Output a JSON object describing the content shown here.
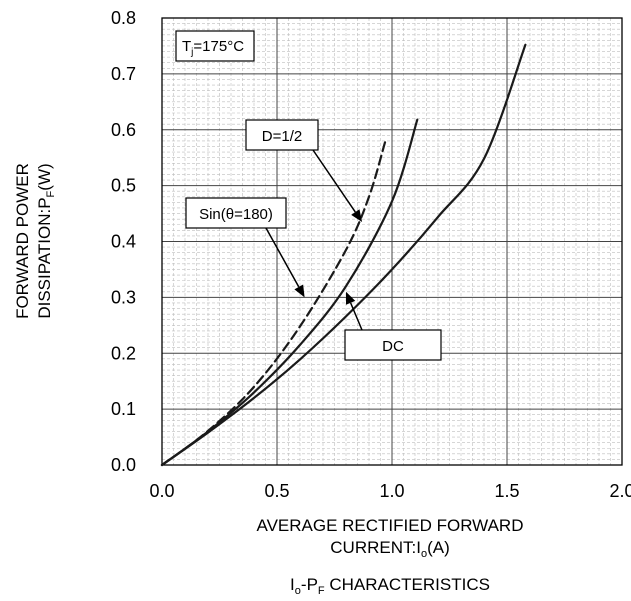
{
  "chart_data": {
    "type": "line",
    "title": "Io-PF CHARACTERISTICS",
    "title_parts": {
      "a": "I",
      "a_sub": "o",
      "b": "-P",
      "b_sub": "F",
      "c": " CHARACTERISTICS"
    },
    "xlabel_line1": "AVERAGE RECTIFIED FORWARD",
    "xlabel_line2": {
      "a": "CURRENT:I",
      "sub": "o",
      "b": "(A)"
    },
    "ylabel_line1": "FORWARD POWER",
    "ylabel_line2": {
      "a": "DISSIPATION:P",
      "sub": "F",
      "b": "(W)"
    },
    "xlim": [
      0,
      2.0
    ],
    "ylim": [
      0,
      0.8
    ],
    "x_ticks": [
      "0.0",
      "0.5",
      "1.0",
      "1.5",
      "2.0"
    ],
    "y_ticks": [
      "0.0",
      "0.1",
      "0.2",
      "0.3",
      "0.4",
      "0.5",
      "0.6",
      "0.7",
      "0.8"
    ],
    "grid": true,
    "condition": {
      "a": "T",
      "sub": "j",
      "b": "=175°C"
    },
    "series": [
      {
        "name": "DC",
        "style": "solid",
        "color": "#1a1a1a",
        "x": [
          0,
          0.2,
          0.4,
          0.6,
          0.8,
          1.0,
          1.2,
          1.4,
          1.58
        ],
        "y": [
          0,
          0.058,
          0.12,
          0.189,
          0.266,
          0.35,
          0.444,
          0.548,
          0.752
        ]
      },
      {
        "name": "D=1/2",
        "style": "solid",
        "color": "#1a1a1a",
        "x": [
          0,
          0.2,
          0.4,
          0.6,
          0.8,
          1.0,
          1.11
        ],
        "y": [
          0,
          0.06,
          0.13,
          0.215,
          0.32,
          0.472,
          0.618
        ]
      },
      {
        "name": "Sin(θ=180)",
        "style": "dashed",
        "color": "#1a1a1a",
        "x": [
          0,
          0.2,
          0.4,
          0.6,
          0.8,
          0.9,
          0.97
        ],
        "y": [
          0,
          0.061,
          0.14,
          0.248,
          0.385,
          0.48,
          0.578
        ]
      }
    ],
    "annotations": [
      {
        "label": "D=1/2",
        "tip_x": 0.87,
        "tip_y": 0.435
      },
      {
        "label": "Sin(θ=180)",
        "tip_x": 0.62,
        "tip_y": 0.3
      },
      {
        "label": "DC",
        "tip_x": 0.8,
        "tip_y": 0.31
      }
    ]
  }
}
